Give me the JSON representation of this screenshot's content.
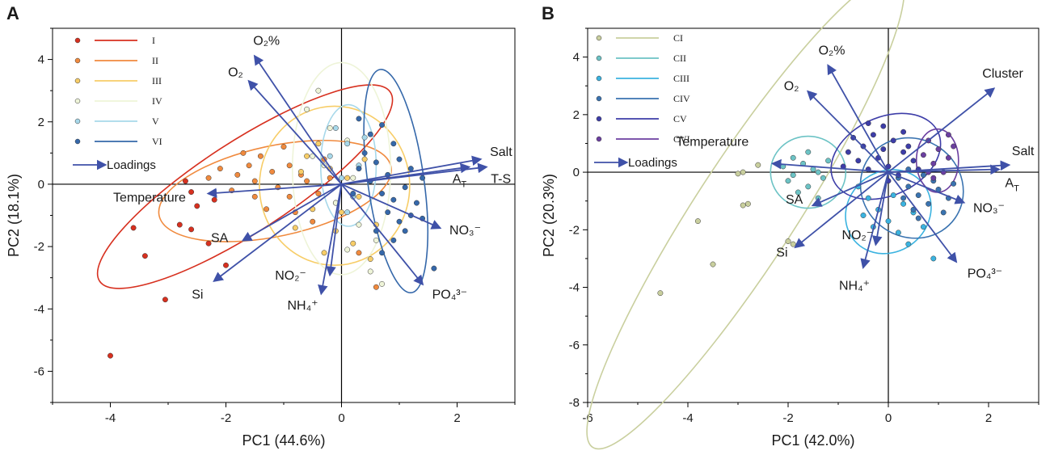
{
  "chart_data": [
    {
      "panel": "A",
      "type": "scatter",
      "xlabel": "PC1 (44.6%)",
      "ylabel": "PC2 (18.1%)",
      "xlim": [
        -5,
        3
      ],
      "ylim": [
        -7,
        5
      ],
      "xticks": [
        -4,
        -2,
        0,
        2
      ],
      "yticks": [
        -6,
        -4,
        -2,
        0,
        2,
        4
      ],
      "grid": false,
      "legend_position": "top-left",
      "loadings_label": "Loadings",
      "accent_colors": {
        "loading": "#3f51a8",
        "axis": "#000000"
      },
      "series": [
        {
          "name": "I",
          "color": "#d7301f",
          "ellipse": {
            "cx": -1.67,
            "cy": -0.08,
            "rx": 3.0,
            "ry": 1.45,
            "angle": 33
          },
          "points": [
            [
              -4.0,
              -5.5
            ],
            [
              -3.05,
              -3.7
            ],
            [
              -3.4,
              -2.3
            ],
            [
              -3.6,
              -1.4
            ],
            [
              -2.8,
              -1.3
            ],
            [
              -2.6,
              -1.45
            ],
            [
              -2.5,
              -0.7
            ],
            [
              -2.6,
              -0.25
            ],
            [
              -2.2,
              -0.5
            ],
            [
              -2.0,
              -2.6
            ],
            [
              -2.3,
              -1.9
            ],
            [
              -2.7,
              0.1
            ]
          ]
        },
        {
          "name": "II",
          "color": "#f08a3e",
          "ellipse": {
            "cx": -1.15,
            "cy": -0.22,
            "rx": 2.05,
            "ry": 1.45,
            "angle": 12
          },
          "points": [
            [
              -1.8,
              0.3
            ],
            [
              -1.6,
              0.6
            ],
            [
              -1.4,
              0.9
            ],
            [
              -1.2,
              0.4
            ],
            [
              -0.9,
              0.6
            ],
            [
              -0.7,
              0.3
            ],
            [
              -1.9,
              -0.2
            ],
            [
              -1.5,
              -0.4
            ],
            [
              -1.1,
              -0.1
            ],
            [
              -0.6,
              0.1
            ],
            [
              -0.4,
              -0.3
            ],
            [
              -0.2,
              0.2
            ],
            [
              -1.3,
              -0.8
            ],
            [
              -0.8,
              -0.9
            ],
            [
              -0.5,
              -1.2
            ],
            [
              -2.1,
              0.5
            ],
            [
              -1.7,
              1.0
            ],
            [
              -1.0,
              1.2
            ],
            [
              -0.3,
              0.8
            ],
            [
              -0.1,
              -0.6
            ],
            [
              0.3,
              -2.2
            ],
            [
              0.6,
              -3.3
            ],
            [
              -2.3,
              0.2
            ],
            [
              -0.9,
              -0.4
            ],
            [
              -1.5,
              0.1
            ]
          ]
        },
        {
          "name": "III",
          "color": "#f7cd68",
          "ellipse": {
            "cx": -0.12,
            "cy": -0.05,
            "rx": 1.3,
            "ry": 2.55,
            "angle": 0
          },
          "points": [
            [
              -0.6,
              0.9
            ],
            [
              -0.4,
              1.3
            ],
            [
              -0.2,
              0.5
            ],
            [
              0.1,
              0.2
            ],
            [
              0.3,
              -0.4
            ],
            [
              -0.5,
              -0.8
            ],
            [
              -0.1,
              -1.5
            ],
            [
              0.2,
              -1.9
            ],
            [
              0.5,
              -2.4
            ],
            [
              -0.3,
              -2.2
            ],
            [
              0.6,
              -1.3
            ],
            [
              -0.7,
              0.4
            ],
            [
              0.4,
              0.8
            ],
            [
              0.0,
              -0.9
            ],
            [
              -0.8,
              -1.4
            ]
          ]
        },
        {
          "name": "IV",
          "color": "#eef4d8",
          "ellipse": {
            "cx": 0.0,
            "cy": 0.5,
            "rx": 0.85,
            "ry": 3.4,
            "angle": 0
          },
          "points": [
            [
              -0.4,
              3.0
            ],
            [
              -0.6,
              2.4
            ],
            [
              -0.2,
              1.8
            ],
            [
              0.1,
              1.4
            ],
            [
              -0.3,
              0.6
            ],
            [
              0.2,
              0.2
            ],
            [
              -0.1,
              -0.6
            ],
            [
              0.3,
              -1.3
            ],
            [
              0.1,
              -2.1
            ],
            [
              0.5,
              -2.8
            ],
            [
              0.7,
              -3.2
            ],
            [
              0.6,
              -1.8
            ],
            [
              -0.5,
              0.9
            ]
          ]
        },
        {
          "name": "V",
          "color": "#a7d8ea",
          "ellipse": {
            "cx": 0.12,
            "cy": 0.6,
            "rx": 0.48,
            "ry": 1.95,
            "angle": 0
          },
          "points": [
            [
              -0.1,
              1.8
            ],
            [
              0.1,
              1.3
            ],
            [
              0.3,
              0.6
            ],
            [
              0.0,
              0.2
            ],
            [
              0.2,
              -0.4
            ],
            [
              -0.2,
              0.9
            ],
            [
              0.4,
              1.5
            ],
            [
              0.1,
              -0.9
            ]
          ]
        },
        {
          "name": "VI",
          "color": "#3568aa",
          "ellipse": {
            "cx": 0.94,
            "cy": 0.1,
            "rx": 1.95,
            "ry": 0.9,
            "angle": -82
          },
          "points": [
            [
              0.3,
              2.1
            ],
            [
              0.5,
              1.6
            ],
            [
              0.7,
              1.9
            ],
            [
              0.9,
              1.3
            ],
            [
              0.4,
              1.0
            ],
            [
              0.6,
              0.7
            ],
            [
              0.8,
              0.3
            ],
            [
              1.0,
              0.8
            ],
            [
              1.2,
              0.5
            ],
            [
              1.4,
              0.2
            ],
            [
              0.5,
              0.1
            ],
            [
              0.7,
              -0.3
            ],
            [
              0.9,
              -0.5
            ],
            [
              1.1,
              -0.1
            ],
            [
              1.3,
              -0.6
            ],
            [
              0.8,
              -0.9
            ],
            [
              1.0,
              -1.2
            ],
            [
              1.2,
              -1.0
            ],
            [
              0.6,
              -1.5
            ],
            [
              0.9,
              -1.8
            ],
            [
              1.1,
              -1.5
            ],
            [
              1.4,
              -1.1
            ],
            [
              0.3,
              0.5
            ],
            [
              0.2,
              -0.3
            ],
            [
              1.6,
              -2.7
            ],
            [
              0.7,
              -2.2
            ]
          ]
        }
      ],
      "loadings": [
        {
          "label": "O₂%",
          "x": -1.5,
          "y": 4.1
        },
        {
          "label": "O₂",
          "x": -1.6,
          "y": 3.3
        },
        {
          "label": "Salt",
          "x": 2.4,
          "y": 0.8
        },
        {
          "label": "A_T",
          "x": 2.2,
          "y": 0.55
        },
        {
          "label": "T-S",
          "x": 2.5,
          "y": 0.55
        },
        {
          "label": "NO₃⁻",
          "x": 1.7,
          "y": -1.4
        },
        {
          "label": "PO₄³⁻",
          "x": 1.4,
          "y": -3.2
        },
        {
          "label": "NH₄⁺",
          "x": -0.35,
          "y": -3.5
        },
        {
          "label": "NO₂⁻",
          "x": -0.2,
          "y": -2.9
        },
        {
          "label": "Si",
          "x": -2.2,
          "y": -3.1
        },
        {
          "label": "SA",
          "x": -1.7,
          "y": -1.8
        },
        {
          "label": "Temperature",
          "x": -2.3,
          "y": -0.3
        }
      ]
    },
    {
      "panel": "B",
      "type": "scatter",
      "xlabel": "PC1 (42.0%)",
      "ylabel": "PC2 (20.3%)",
      "xlim": [
        -6,
        3
      ],
      "ylim": [
        -8,
        5
      ],
      "xticks": [
        -6,
        -4,
        -2,
        0,
        2
      ],
      "yticks": [
        -8,
        -6,
        -4,
        -2,
        0,
        2,
        4
      ],
      "grid": false,
      "legend_position": "top-left",
      "loadings_label": "Loadings",
      "accent_colors": {
        "loading": "#3f51a8",
        "axis": "#000000"
      },
      "series": [
        {
          "name": "CI",
          "color": "#c9cf9e",
          "ellipse": {
            "cx": -2.85,
            "cy": -1.38,
            "rx": 5.6,
            "ry": 1.75,
            "angle": 57
          },
          "points": [
            [
              -4.55,
              -4.2
            ],
            [
              -3.5,
              -3.2
            ],
            [
              -3.8,
              -1.7
            ],
            [
              -2.8,
              -1.1
            ],
            [
              -2.9,
              -1.15
            ],
            [
              -3.0,
              -0.05
            ],
            [
              -2.9,
              0.0
            ],
            [
              -2.6,
              0.25
            ],
            [
              -2.0,
              -2.4
            ],
            [
              -1.9,
              -2.5
            ]
          ]
        },
        {
          "name": "CII",
          "color": "#6cc3c5",
          "ellipse": {
            "cx": -1.6,
            "cy": 0.0,
            "rx": 0.75,
            "ry": 1.25,
            "angle": 0
          },
          "points": [
            [
              -1.9,
              0.5
            ],
            [
              -1.7,
              0.3
            ],
            [
              -1.5,
              0.1
            ],
            [
              -1.3,
              -0.2
            ],
            [
              -2.0,
              -0.3
            ],
            [
              -1.8,
              -0.7
            ],
            [
              -1.6,
              -0.5
            ],
            [
              -1.4,
              -0.9
            ],
            [
              -2.1,
              0.2
            ],
            [
              -1.2,
              0.4
            ],
            [
              -1.6,
              0.7
            ],
            [
              -1.9,
              -0.1
            ],
            [
              -1.4,
              0.0
            ]
          ]
        },
        {
          "name": "CIII",
          "color": "#3bb3e0",
          "ellipse": {
            "cx": 0.0,
            "cy": -1.37,
            "rx": 0.8,
            "ry": 1.55,
            "angle": -50
          },
          "points": [
            [
              -0.6,
              -0.5
            ],
            [
              -0.4,
              -0.9
            ],
            [
              -0.2,
              -1.3
            ],
            [
              0.0,
              -1.7
            ],
            [
              0.2,
              -2.1
            ],
            [
              0.4,
              -2.5
            ],
            [
              -0.3,
              -1.9
            ],
            [
              0.1,
              -0.8
            ],
            [
              0.5,
              -1.4
            ],
            [
              0.7,
              -1.9
            ],
            [
              -0.5,
              -1.5
            ],
            [
              0.3,
              -1.1
            ],
            [
              0.9,
              -3.0
            ]
          ]
        },
        {
          "name": "CIV",
          "color": "#3a73b0",
          "ellipse": {
            "cx": 0.47,
            "cy": -0.55,
            "rx": 1.05,
            "ry": 1.7,
            "angle": -35
          },
          "points": [
            [
              0.2,
              -0.2
            ],
            [
              0.4,
              -0.5
            ],
            [
              0.6,
              -0.8
            ],
            [
              0.8,
              -1.1
            ],
            [
              1.0,
              -0.6
            ],
            [
              1.2,
              -0.9
            ],
            [
              0.5,
              -1.3
            ],
            [
              0.3,
              -0.9
            ],
            [
              0.9,
              -0.3
            ],
            [
              0.7,
              -0.1
            ],
            [
              1.1,
              -1.4
            ],
            [
              0.4,
              0.1
            ],
            [
              0.6,
              -1.6
            ],
            [
              1.3,
              -0.4
            ]
          ]
        },
        {
          "name": "CV",
          "color": "#3d3da8",
          "ellipse": {
            "cx": -0.05,
            "cy": 0.55,
            "rx": 0.78,
            "ry": 2.0,
            "angle": -65
          },
          "points": [
            [
              -0.7,
              1.2
            ],
            [
              -0.5,
              0.9
            ],
            [
              -0.3,
              1.3
            ],
            [
              -0.1,
              0.8
            ],
            [
              0.1,
              1.1
            ],
            [
              0.3,
              0.7
            ],
            [
              0.5,
              0.4
            ],
            [
              -0.6,
              0.4
            ],
            [
              -0.4,
              0.1
            ],
            [
              -0.2,
              0.5
            ],
            [
              0.0,
              0.2
            ],
            [
              0.2,
              -0.1
            ],
            [
              0.4,
              0.9
            ],
            [
              -0.8,
              0.7
            ],
            [
              0.6,
              0.1
            ],
            [
              -0.1,
              1.6
            ],
            [
              0.3,
              1.4
            ],
            [
              -0.4,
              1.7
            ],
            [
              0.0,
              -0.3
            ],
            [
              -0.9,
              0.2
            ]
          ]
        },
        {
          "name": "CVI",
          "color": "#6b3fa0",
          "ellipse": {
            "cx": 0.98,
            "cy": 0.4,
            "rx": 0.42,
            "ry": 1.1,
            "angle": 0
          },
          "points": [
            [
              0.8,
              1.1
            ],
            [
              1.0,
              0.8
            ],
            [
              1.2,
              0.5
            ],
            [
              0.9,
              0.3
            ],
            [
              1.1,
              0.0
            ],
            [
              0.7,
              0.6
            ],
            [
              1.3,
              0.9
            ],
            [
              0.9,
              -0.2
            ],
            [
              1.2,
              1.3
            ],
            [
              0.8,
              0.0
            ]
          ]
        }
      ],
      "loadings": [
        {
          "label": "O₂%",
          "x": -1.2,
          "y": 3.7
        },
        {
          "label": "O₂",
          "x": -1.6,
          "y": 2.8
        },
        {
          "label": "Cluster",
          "x": 2.1,
          "y": 2.9
        },
        {
          "label": "Salt",
          "x": 2.4,
          "y": 0.25
        },
        {
          "label": "A_T",
          "x": 2.2,
          "y": 0.1
        },
        {
          "label": "NO₃⁻",
          "x": 1.5,
          "y": -1.05
        },
        {
          "label": "PO₄³⁻",
          "x": 1.35,
          "y": -3.1
        },
        {
          "label": "NH₄⁺",
          "x": -0.5,
          "y": -3.3
        },
        {
          "label": "NO₂⁻",
          "x": -0.25,
          "y": -2.5
        },
        {
          "label": "Si",
          "x": -1.85,
          "y": -2.6
        },
        {
          "label": "SA",
          "x": -1.5,
          "y": -1.15
        },
        {
          "label": "Temperature",
          "x": -2.3,
          "y": 0.3
        }
      ]
    }
  ]
}
